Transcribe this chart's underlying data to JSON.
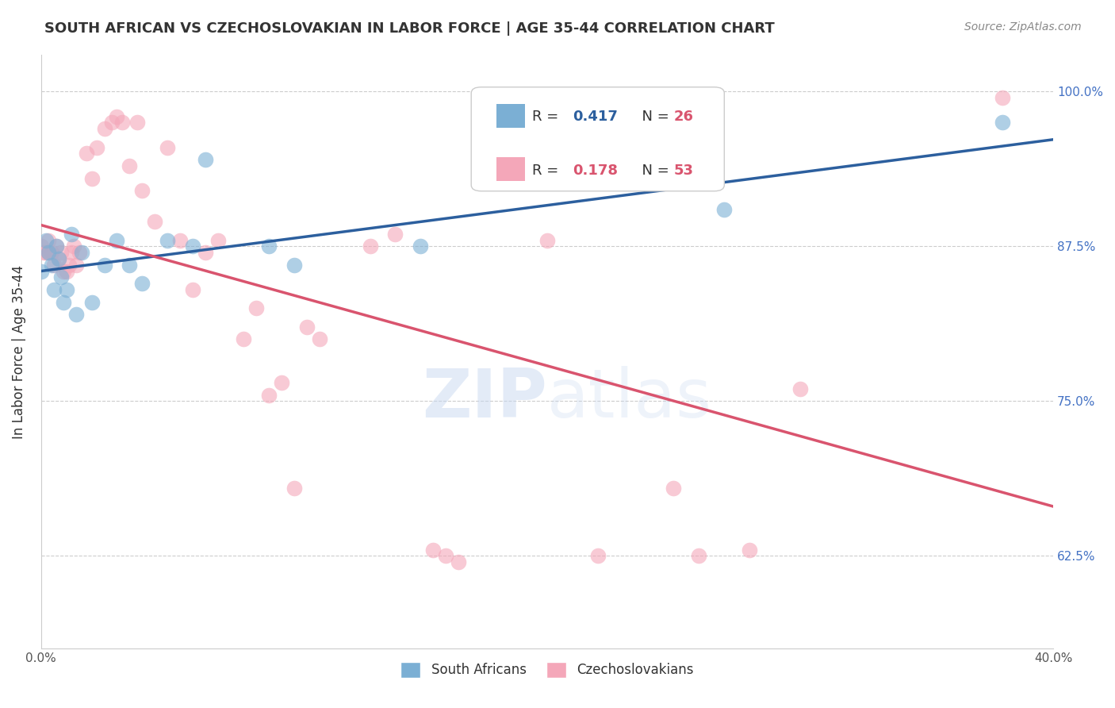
{
  "title": "SOUTH AFRICAN VS CZECHOSLOVAKIAN IN LABOR FORCE | AGE 35-44 CORRELATION CHART",
  "source": "Source: ZipAtlas.com",
  "xlabel": "",
  "ylabel": "In Labor Force | Age 35-44",
  "xlim": [
    0.0,
    0.4
  ],
  "ylim": [
    0.55,
    1.03
  ],
  "yticks": [
    0.625,
    0.75,
    0.875,
    1.0
  ],
  "ytick_labels": [
    "62.5%",
    "75.0%",
    "87.5%",
    "100.0%"
  ],
  "xticks": [
    0.0,
    0.05,
    0.1,
    0.15,
    0.2,
    0.25,
    0.3,
    0.35,
    0.4
  ],
  "xtick_labels": [
    "0.0%",
    "",
    "",
    "",
    "",
    "",
    "",
    "",
    "40.0%"
  ],
  "sa_color": "#7bafd4",
  "cz_color": "#f4a7b9",
  "sa_line_color": "#2c5f9e",
  "cz_line_color": "#d9546e",
  "sa_R": 0.417,
  "sa_N": 26,
  "cz_R": 0.178,
  "cz_N": 53,
  "legend_R_color": "#2c5f9e",
  "legend_N_color": "#d9546e",
  "watermark": "ZIPatlas",
  "sa_points_x": [
    0.0,
    0.002,
    0.003,
    0.004,
    0.005,
    0.006,
    0.007,
    0.008,
    0.009,
    0.01,
    0.012,
    0.014,
    0.016,
    0.02,
    0.025,
    0.03,
    0.035,
    0.04,
    0.05,
    0.06,
    0.065,
    0.09,
    0.1,
    0.15,
    0.27,
    0.38
  ],
  "sa_points_y": [
    0.855,
    0.88,
    0.87,
    0.86,
    0.84,
    0.875,
    0.865,
    0.85,
    0.83,
    0.84,
    0.885,
    0.82,
    0.87,
    0.83,
    0.86,
    0.88,
    0.86,
    0.845,
    0.88,
    0.875,
    0.945,
    0.875,
    0.86,
    0.875,
    0.905,
    0.975
  ],
  "cz_points_x": [
    0.0,
    0.001,
    0.002,
    0.003,
    0.003,
    0.004,
    0.005,
    0.006,
    0.007,
    0.008,
    0.009,
    0.01,
    0.011,
    0.012,
    0.013,
    0.014,
    0.015,
    0.018,
    0.02,
    0.022,
    0.025,
    0.028,
    0.03,
    0.032,
    0.035,
    0.038,
    0.04,
    0.045,
    0.05,
    0.055,
    0.06,
    0.065,
    0.07,
    0.08,
    0.085,
    0.09,
    0.095,
    0.1,
    0.105,
    0.11,
    0.13,
    0.14,
    0.155,
    0.16,
    0.165,
    0.19,
    0.2,
    0.22,
    0.25,
    0.26,
    0.28,
    0.3,
    0.38
  ],
  "cz_points_y": [
    0.875,
    0.87,
    0.87,
    0.87,
    0.88,
    0.87,
    0.86,
    0.875,
    0.865,
    0.87,
    0.855,
    0.855,
    0.86,
    0.87,
    0.875,
    0.86,
    0.87,
    0.95,
    0.93,
    0.955,
    0.97,
    0.975,
    0.98,
    0.975,
    0.94,
    0.975,
    0.92,
    0.895,
    0.955,
    0.88,
    0.84,
    0.87,
    0.88,
    0.8,
    0.825,
    0.755,
    0.765,
    0.68,
    0.81,
    0.8,
    0.875,
    0.885,
    0.63,
    0.625,
    0.62,
    0.965,
    0.88,
    0.625,
    0.68,
    0.625,
    0.63,
    0.76,
    0.995
  ]
}
